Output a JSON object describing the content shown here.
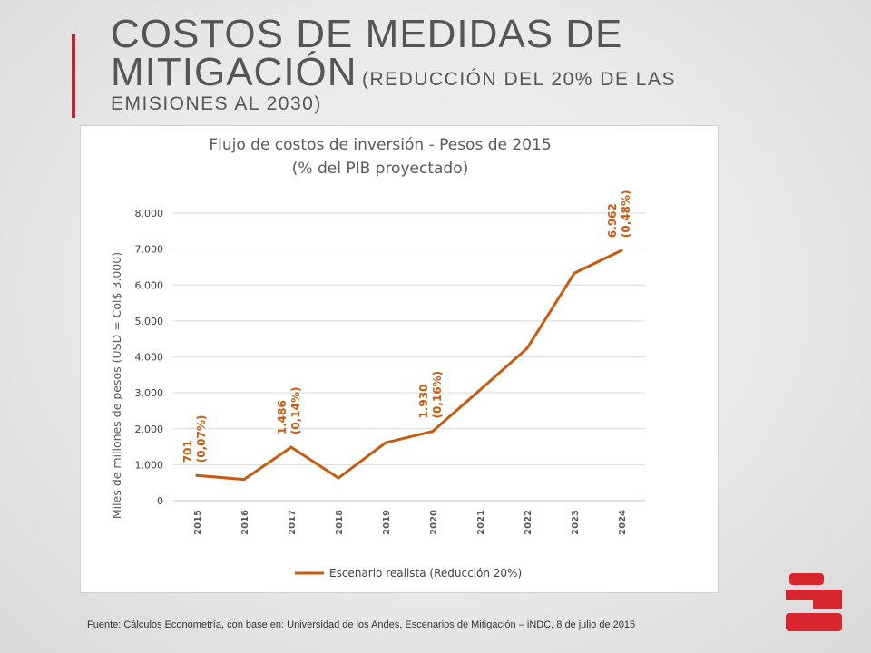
{
  "slide": {
    "title_line1": "COSTOS DE MEDIDAS DE",
    "title_line2": "MITIGACIÓN",
    "title_sub": "(REDUCCIÓN DEL 20% DE LAS",
    "title_sub_line2": "EMISIONES AL 2030)",
    "source": "Fuente: Cálculos Econometría, con base en: Universidad de los Andes, Escenarios de Mitigación – iNDC, 8 de julio de 2015"
  },
  "colors": {
    "accent": "#c0272d",
    "series": "#c55a11",
    "title_text": "#555555"
  },
  "chart_data": {
    "type": "line",
    "title": "Flujo de costos de inversión - Pesos de 2015",
    "subtitle": "(% del PIB proyectado)",
    "xlabel": "",
    "ylabel": "Miles de millones de pesos (USD = Col$ 3.000)",
    "ylim": [
      0,
      8000
    ],
    "yticks": [
      "0",
      "1.000",
      "2.000",
      "3.000",
      "4.000",
      "5.000",
      "6.000",
      "7.000",
      "8.000"
    ],
    "grid": true,
    "legend": "bottom",
    "categories": [
      "2015",
      "2016",
      "2017",
      "2018",
      "2019",
      "2020",
      "2021",
      "2022",
      "2023",
      "2024"
    ],
    "series": [
      {
        "name": "Escenario realista (Reducción 20%)",
        "values": [
          701,
          590,
          1486,
          630,
          1610,
          1930,
          3080,
          4240,
          6330,
          6962
        ]
      }
    ],
    "annotations": [
      {
        "index": 0,
        "value": "701",
        "pct": "(0,07%)"
      },
      {
        "index": 2,
        "value": "1.486",
        "pct": "(0,14%)"
      },
      {
        "index": 5,
        "value": "1.930",
        "pct": "(0,16%)"
      },
      {
        "index": 9,
        "value": "6.962",
        "pct": "(0,48%)"
      }
    ]
  }
}
